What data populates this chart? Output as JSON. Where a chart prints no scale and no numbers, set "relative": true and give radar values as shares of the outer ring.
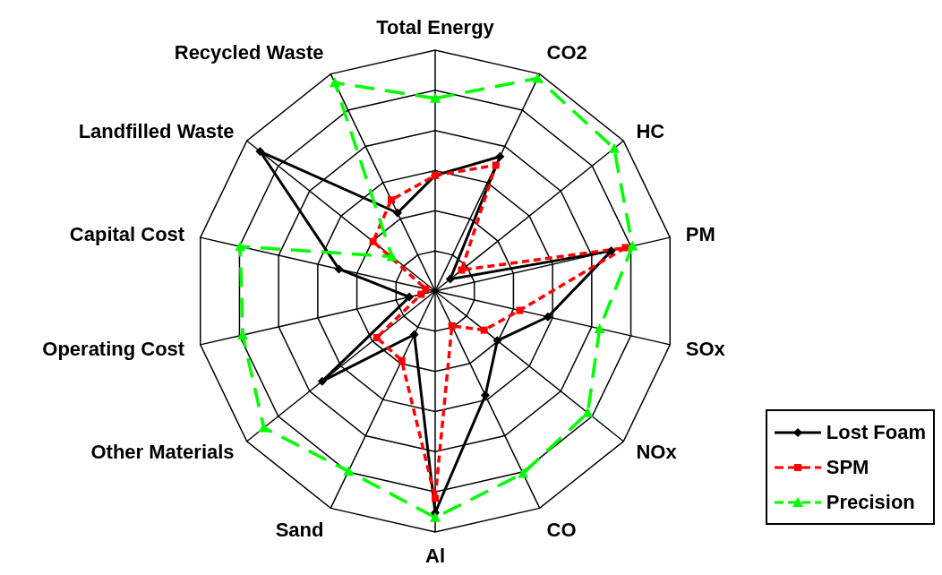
{
  "chart_data": {
    "type": "radar",
    "relative": true,
    "grid": true,
    "legend": "bottom right",
    "categories": [
      "Total Energy",
      "CO2",
      "HC",
      "PM",
      "SOx",
      "NOx",
      "CO",
      "Al",
      "Sand",
      "Other Materials",
      "Operating Cost",
      "Capital Cost",
      "Landfilled Waste",
      "Recycled Waste"
    ],
    "series": [
      {
        "name": "Lost Foam",
        "color": "#000000",
        "marker": "diamond",
        "line_style": "solid",
        "values": [
          0.48,
          0.62,
          0.08,
          0.75,
          0.48,
          0.33,
          0.48,
          0.92,
          0.2,
          0.6,
          0.11,
          0.41,
          0.93,
          0.36
        ]
      },
      {
        "name": "SPM",
        "color": "#ff0000",
        "marker": "square",
        "line_style": "dotted",
        "values": [
          0.48,
          0.58,
          0.14,
          0.81,
          0.36,
          0.26,
          0.16,
          0.86,
          0.32,
          0.31,
          0.06,
          0.04,
          0.33,
          0.42
        ]
      },
      {
        "name": "Precision",
        "color": "#00ff00",
        "marker": "triangle",
        "line_style": "dashed",
        "values": [
          0.8,
          0.98,
          0.95,
          0.84,
          0.7,
          0.81,
          0.84,
          0.94,
          0.83,
          0.91,
          0.82,
          0.83,
          0.23,
          0.96
        ]
      }
    ]
  }
}
